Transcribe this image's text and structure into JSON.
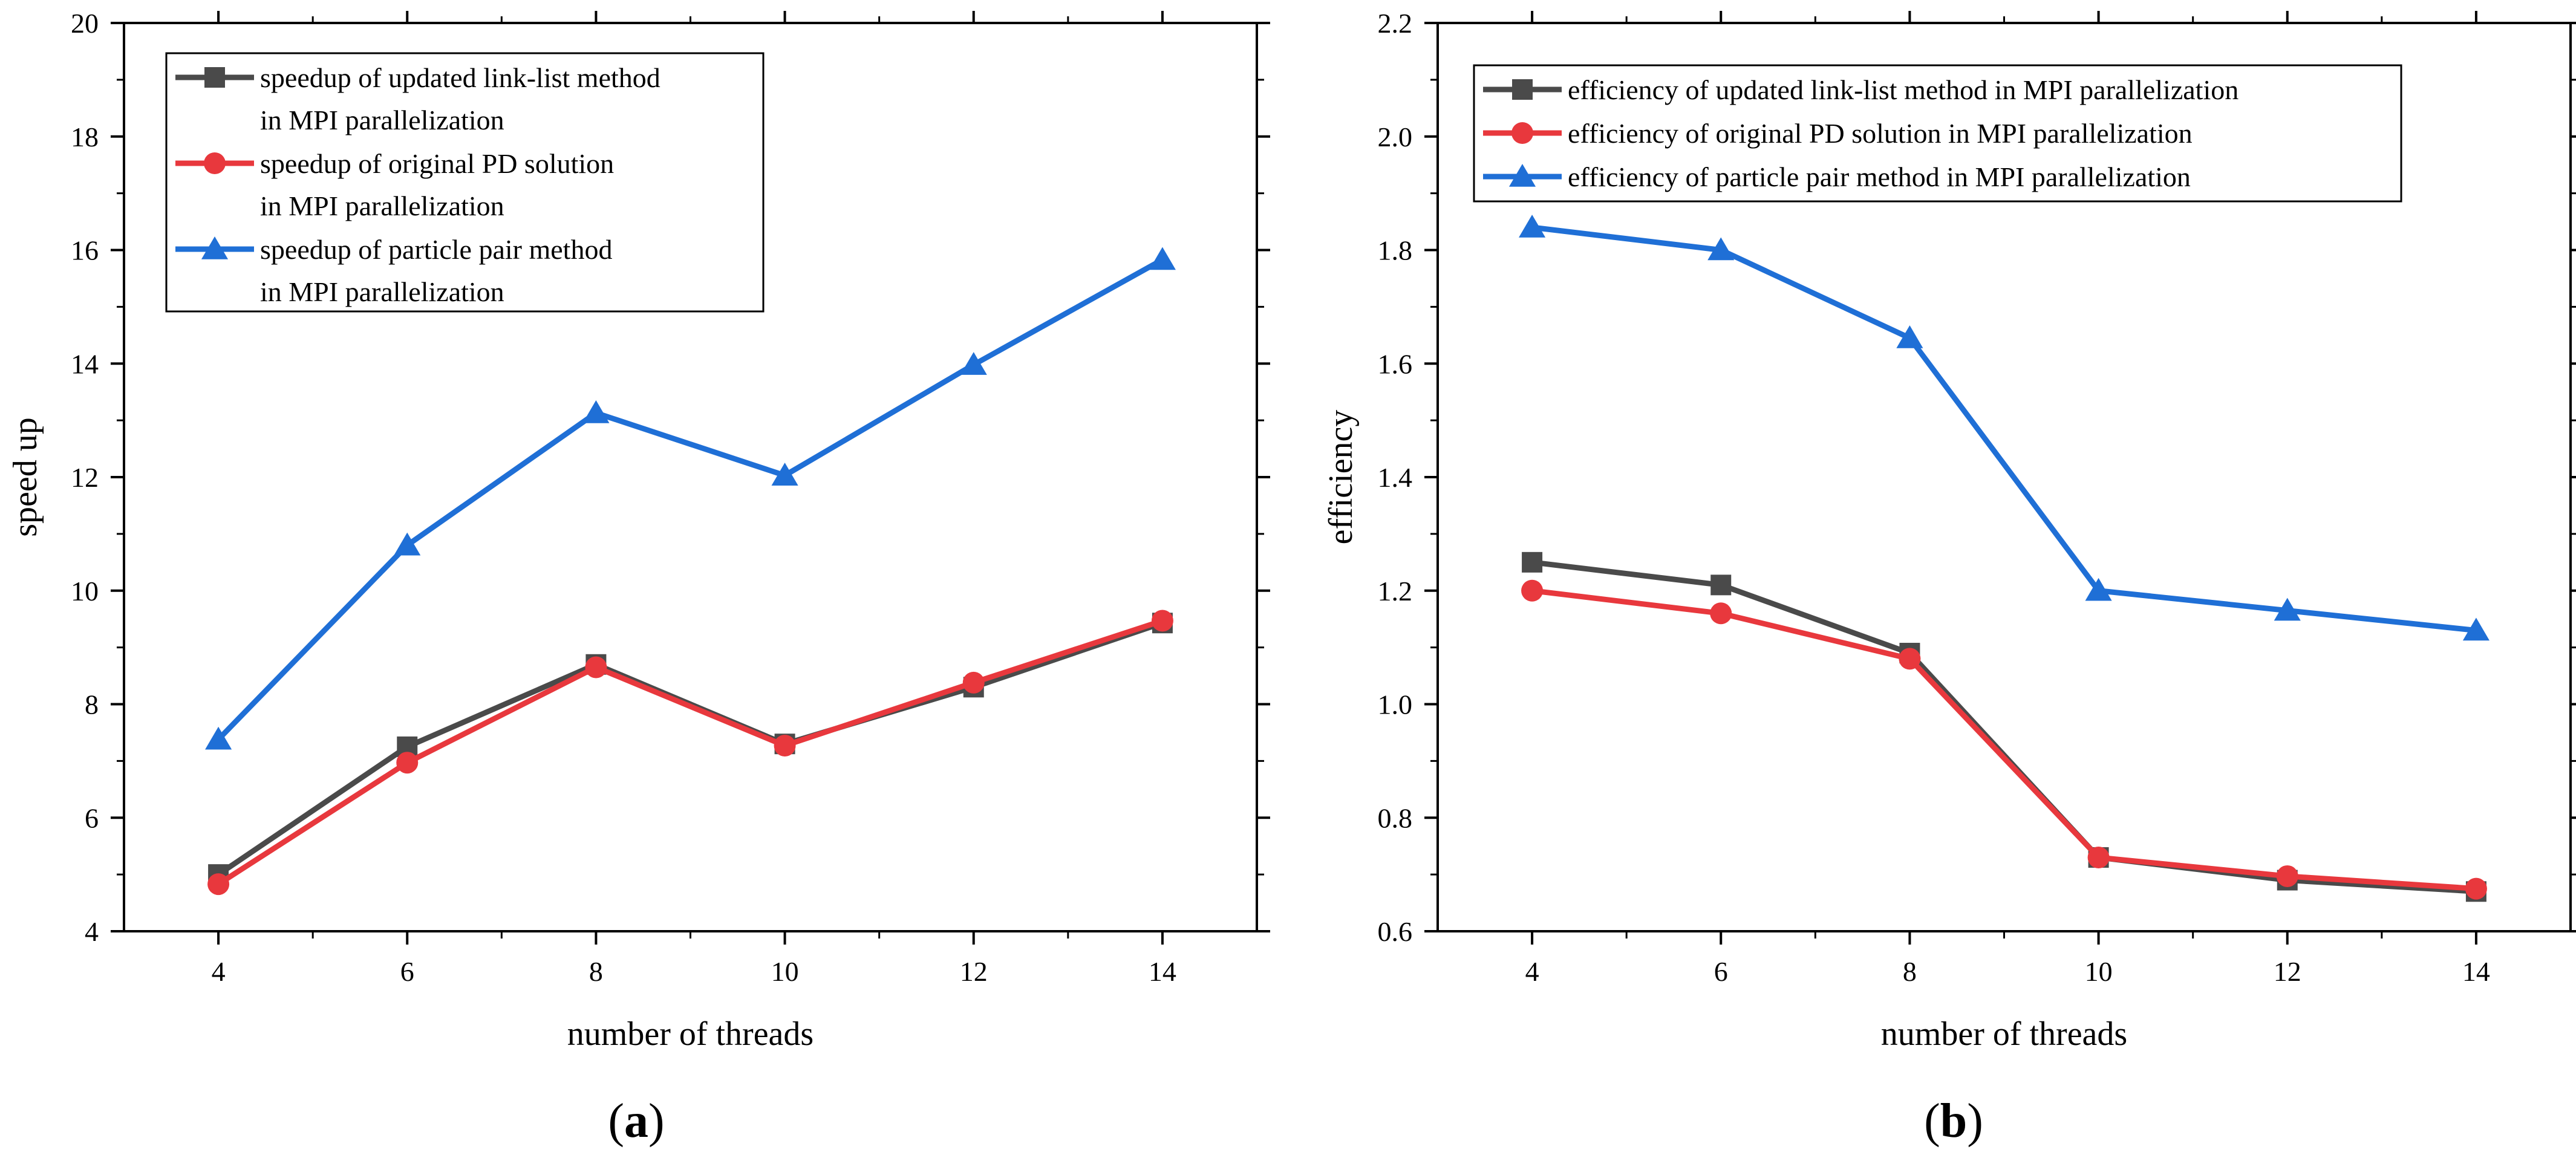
{
  "chart_data": [
    {
      "type": "line",
      "panel_label": "a",
      "xlabel": "number of threads",
      "ylabel": "speed up",
      "xlim": [
        3,
        15
      ],
      "ylim": [
        4,
        20
      ],
      "x": [
        4,
        6,
        8,
        10,
        12,
        14
      ],
      "xticks": [
        4,
        6,
        8,
        10,
        12,
        14
      ],
      "yticks": [
        4,
        6,
        8,
        10,
        12,
        14,
        16,
        18,
        20
      ],
      "legend_position": "top-left",
      "series": [
        {
          "name": "speedup of updated link-list method",
          "name_line2": "in MPI parallelization",
          "color": "#4a4a4a",
          "marker": "square",
          "values": [
            5.0,
            7.25,
            8.7,
            7.3,
            8.3,
            9.43
          ]
        },
        {
          "name": "speedup of original PD solution",
          "name_line2": "in MPI parallelization",
          "color": "#e8383d",
          "marker": "circle",
          "values": [
            4.83,
            6.97,
            8.65,
            7.27,
            8.38,
            9.47
          ]
        },
        {
          "name": "speedup of particle pair method",
          "name_line2": "in MPI parallelization",
          "color": "#1f6fd6",
          "marker": "triangle",
          "values": [
            7.38,
            10.8,
            13.13,
            12.03,
            13.98,
            15.83
          ]
        }
      ]
    },
    {
      "type": "line",
      "panel_label": "b",
      "xlabel": "number of threads",
      "ylabel": "efficiency",
      "xlim": [
        3,
        15
      ],
      "ylim": [
        0.6,
        2.2
      ],
      "x": [
        4,
        6,
        8,
        10,
        12,
        14
      ],
      "xticks": [
        4,
        6,
        8,
        10,
        12,
        14
      ],
      "yticks": [
        "0.6",
        "0.8",
        "1.0",
        "1.2",
        "1.4",
        "1.6",
        "1.8",
        "2.0",
        "2.2"
      ],
      "legend_position": "top-left",
      "series": [
        {
          "name": "efficiency of  updated link-list method in MPI parallelization",
          "color": "#4a4a4a",
          "marker": "square",
          "values": [
            1.25,
            1.21,
            1.09,
            0.73,
            0.69,
            0.67
          ]
        },
        {
          "name": "efficiency of  original PD solution in MPI parallelization",
          "color": "#e8383d",
          "marker": "circle",
          "values": [
            1.2,
            1.16,
            1.08,
            0.73,
            0.697,
            0.675
          ]
        },
        {
          "name": "efficiency of  particle pair method in MPI parallelization",
          "color": "#1f6fd6",
          "marker": "triangle",
          "values": [
            1.84,
            1.8,
            1.645,
            1.2,
            1.165,
            1.13
          ]
        }
      ]
    }
  ]
}
